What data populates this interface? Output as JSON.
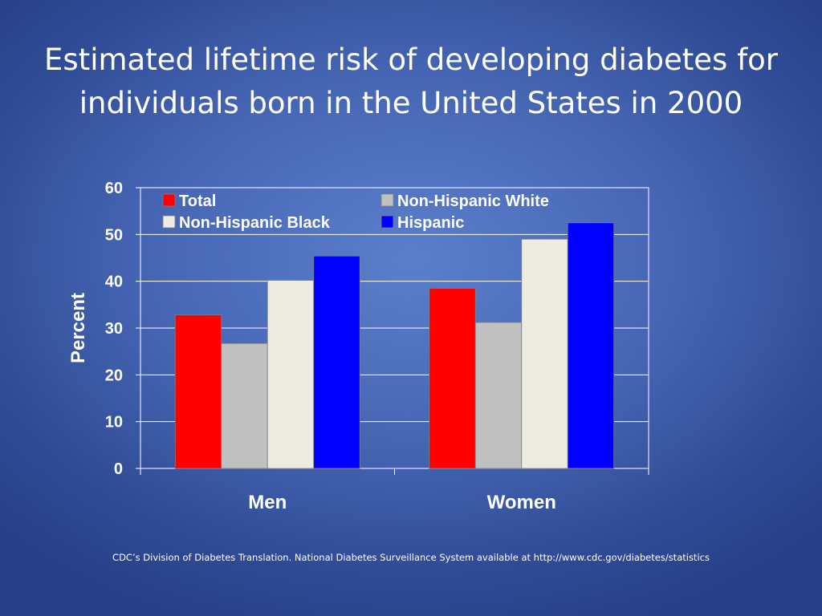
{
  "slide": {
    "title_line1": "Estimated lifetime risk of developing diabetes for",
    "title_line2": "individuals born in the United States in 2000",
    "source": "CDC’s Division of Diabetes Translation. National Diabetes Surveillance System available at http://www.cdc.gov/diabetes/statistics"
  },
  "chart_data": {
    "type": "bar",
    "title": "Estimated lifetime risk of developing diabetes for individuals born in the United States in 2000",
    "categories": [
      "Men",
      "Women"
    ],
    "series": [
      {
        "name": "Total",
        "values": [
          32.8,
          38.5
        ],
        "color": "#ff0000"
      },
      {
        "name": "Non-Hispanic White",
        "values": [
          26.7,
          31.2
        ],
        "color": "#c0c0c0"
      },
      {
        "name": "Non-Hispanic Black",
        "values": [
          40.2,
          49.0
        ],
        "color": "#eeece1"
      },
      {
        "name": "Hispanic",
        "values": [
          45.4,
          52.5
        ],
        "color": "#0000ff"
      }
    ],
    "xlabel": "",
    "ylabel": "Percent",
    "ylim": [
      0,
      60
    ],
    "yticks": [
      "0",
      "10",
      "20",
      "30",
      "40",
      "50",
      "60"
    ],
    "grid": true,
    "legend_position": "top-inside"
  }
}
